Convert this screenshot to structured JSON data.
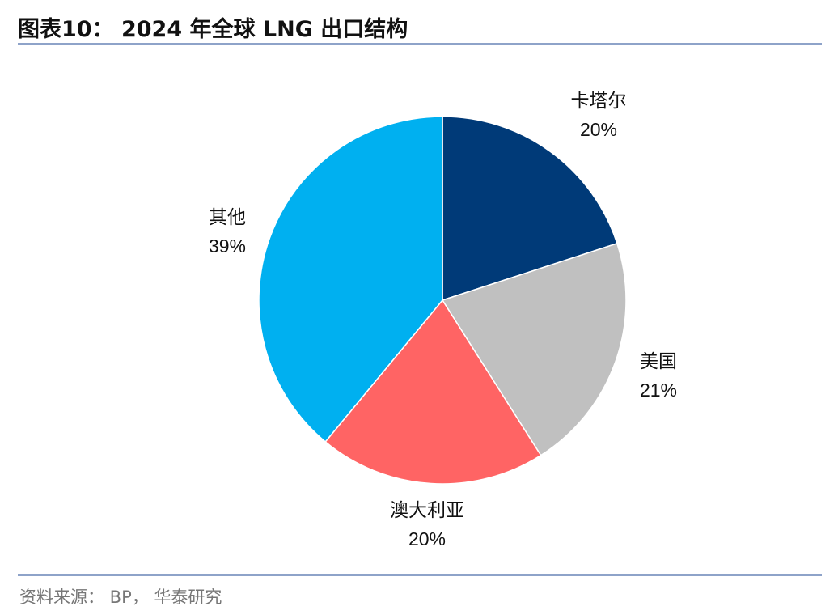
{
  "chart_data": {
    "type": "pie",
    "title": "图表10： 2024 年全球 LNG 出口结构",
    "source": "资料来源： BP， 华泰研究",
    "slices": [
      {
        "label": "卡塔尔",
        "value": 20,
        "pct_text": "20%",
        "color": "#003a78"
      },
      {
        "label": "美国",
        "value": 21,
        "pct_text": "21%",
        "color": "#c0c0c0"
      },
      {
        "label": "澳大利亚",
        "value": 20,
        "pct_text": "20%",
        "color": "#ff6464"
      },
      {
        "label": "其他",
        "value": 39,
        "pct_text": "39%",
        "color": "#00b0f0"
      }
    ]
  }
}
